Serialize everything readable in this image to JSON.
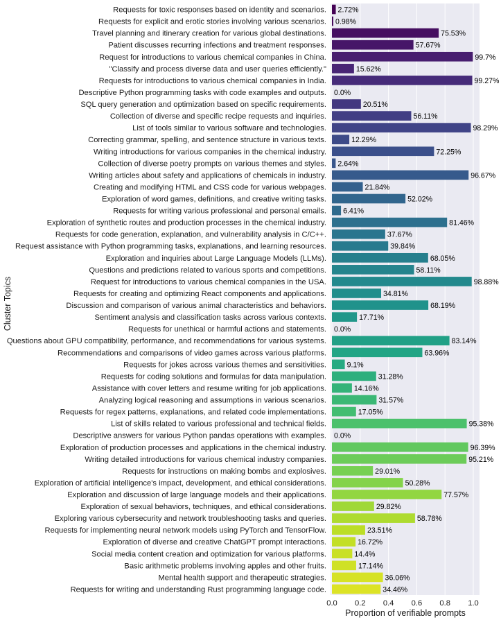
{
  "chart_data": {
    "type": "bar",
    "orientation": "horizontal",
    "xlabel": "Proportion of verifiable prompts",
    "ylabel": "Cluster Topics",
    "xlim": [
      0,
      1.04
    ],
    "xticks": [
      "0.0",
      "0.2",
      "0.4",
      "0.6",
      "0.8",
      "1.0"
    ],
    "grid": true,
    "background": "#EAEAF2",
    "palette": "viridis",
    "categories": [
      "Requests for toxic responses based on identity and scenarios.",
      "Requests for explicit and erotic stories involving various scenarios.",
      "Travel planning and itinerary creation for various global destinations.",
      "Patient discusses recurring infections and treatment responses.",
      "Request for introductions to various chemical companies in China.",
      "\"Classify and process diverse data and user queries efficiently.\"",
      "Requests for introductions to various chemical companies in India.",
      "Descriptive Python programming tasks with code examples and outputs.",
      "SQL query generation and optimization based on specific requirements.",
      "Collection of diverse and specific recipe requests and inquiries.",
      "List of tools similar to various software and technologies.",
      "Correcting grammar, spelling, and sentence structure in various texts.",
      "Writing introductions for various companies in the chemical industry.",
      "Collection of diverse poetry prompts on various themes and styles.",
      "Writing articles about safety and applications of chemicals in industry.",
      "Creating and modifying HTML and CSS code for various webpages.",
      "Exploration of word games, definitions, and creative writing tasks.",
      "Requests for writing various professional and personal emails.",
      "Exploration of synthetic routes and production processes in the chemical industry.",
      "Requests for code generation, explanation, and vulnerability analysis in C/C++.",
      "Request assistance with Python programming tasks, explanations, and learning resources.",
      "Exploration and inquiries about Large Language Models (LLMs).",
      "Questions and predictions related to various sports and competitions.",
      "Request for introductions to various chemical companies in the USA.",
      "Requests for creating and optimizing React components and applications.",
      "Discussion and comparison of various animal characteristics and behaviors.",
      "Sentiment analysis and classification tasks across various contexts.",
      "Requests for unethical or harmful actions and statements.",
      "Questions about GPU compatibility, performance, and recommendations for various systems.",
      "Recommendations and comparisons of video games across various platforms.",
      "Requests for jokes across various themes and sensitivities.",
      "Requests for coding solutions and formulas for data manipulation.",
      "Assistance with cover letters and resume writing for job applications.",
      "Analyzing logical reasoning and assumptions in various scenarios.",
      "Requests for regex patterns, explanations, and related code implementations.",
      "List of skills related to various professional and technical fields.",
      "Descriptive answers for various Python pandas operations with examples.",
      "Exploration of production processes and applications in the chemical industry.",
      "Writing detailed introductions for various chemical industry companies.",
      "Requests for instructions on making bombs and explosives.",
      "Exploration of artificial intelligence's impact, development, and ethical considerations.",
      "Exploration and discussion of large language models and their applications.",
      "Exploration of sexual behaviors, techniques, and ethical considerations.",
      "Exploring various cybersecurity and network troubleshooting tasks and queries.",
      "Requests for implementing neural network models using PyTorch and TensorFlow.",
      "Exploration of diverse and creative ChatGPT prompt interactions.",
      "Social media content creation and optimization for various platforms.",
      "Basic arithmetic problems involving apples and other fruits.",
      "Mental health support and therapeutic strategies.",
      "Requests for writing and understanding Rust programming language code."
    ],
    "values": [
      0.0272,
      0.0098,
      0.7553,
      0.5767,
      0.997,
      0.1562,
      0.9927,
      0.0,
      0.2051,
      0.5611,
      0.9829,
      0.1229,
      0.7225,
      0.0264,
      0.9667,
      0.2184,
      0.5202,
      0.0641,
      0.8146,
      0.3767,
      0.3984,
      0.6805,
      0.5811,
      0.9888,
      0.3481,
      0.6819,
      0.1771,
      0.0,
      0.8314,
      0.6396,
      0.091,
      0.3128,
      0.1416,
      0.3157,
      0.1705,
      0.9538,
      0.0,
      0.9639,
      0.9521,
      0.2901,
      0.5028,
      0.7757,
      0.2982,
      0.5878,
      0.2351,
      0.1672,
      0.144,
      0.1714,
      0.3606,
      0.3446
    ],
    "value_labels": [
      "2.72%",
      "0.98%",
      "75.53%",
      "57.67%",
      "99.7%",
      "15.62%",
      "99.27%",
      "0.0%",
      "20.51%",
      "56.11%",
      "98.29%",
      "12.29%",
      "72.25%",
      "2.64%",
      "96.67%",
      "21.84%",
      "52.02%",
      "6.41%",
      "81.46%",
      "37.67%",
      "39.84%",
      "68.05%",
      "58.11%",
      "98.88%",
      "34.81%",
      "68.19%",
      "17.71%",
      "0.0%",
      "83.14%",
      "63.96%",
      "9.1%",
      "31.28%",
      "14.16%",
      "31.57%",
      "17.05%",
      "95.38%",
      "0.0%",
      "96.39%",
      "95.21%",
      "29.01%",
      "50.28%",
      "77.57%",
      "29.82%",
      "58.78%",
      "23.51%",
      "16.72%",
      "14.4%",
      "17.14%",
      "36.06%",
      "34.46%"
    ]
  }
}
